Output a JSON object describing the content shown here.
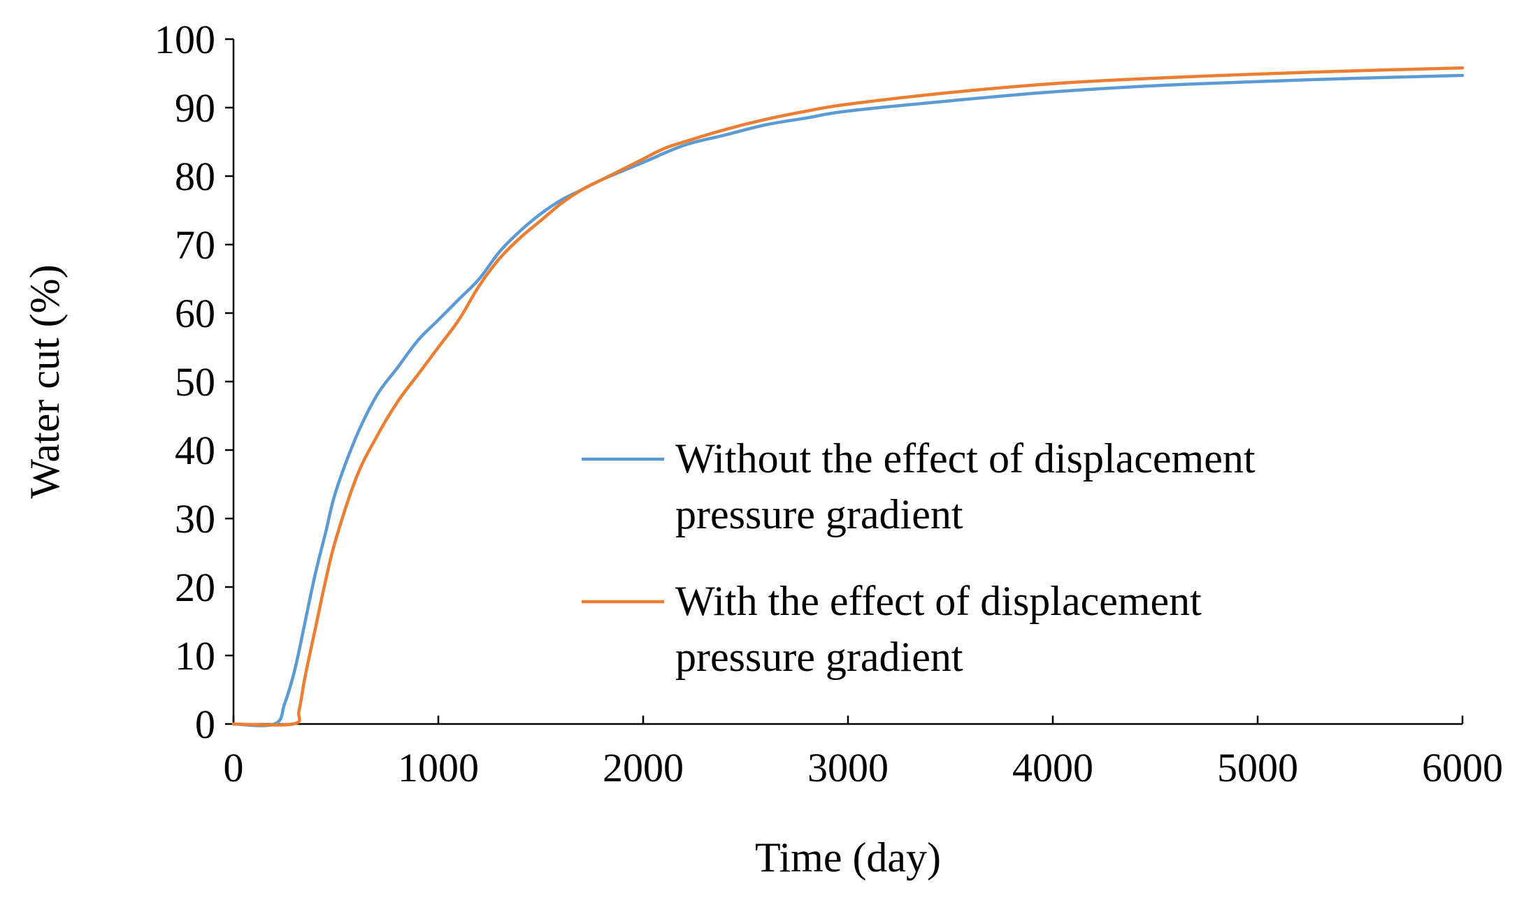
{
  "chart_data": {
    "type": "line",
    "title": "",
    "xlabel": "Time (day)",
    "ylabel": "Water cut (%)",
    "xlim": [
      0,
      6000
    ],
    "ylim": [
      0,
      100
    ],
    "xticks": [
      "0",
      "1000",
      "2000",
      "3000",
      "4000",
      "5000",
      "6000"
    ],
    "yticks": [
      "0",
      "10",
      "20",
      "30",
      "40",
      "50",
      "60",
      "70",
      "80",
      "90",
      "100"
    ],
    "grid": false,
    "legend_position": "center-right",
    "series": [
      {
        "name_lines": [
          "Without the effect of displacement",
          "pressure gradient"
        ],
        "color": "#5b9bd5",
        "x": [
          0,
          200,
          250,
          300,
          350,
          400,
          450,
          500,
          600,
          700,
          800,
          900,
          1000,
          1100,
          1200,
          1300,
          1400,
          1500,
          1600,
          1700,
          1800,
          2000,
          2200,
          2400,
          2600,
          2800,
          3000,
          3500,
          4000,
          4500,
          5000,
          5500,
          6000
        ],
        "y": [
          0,
          0,
          3,
          8,
          15,
          22,
          28,
          34,
          42,
          48,
          52,
          56,
          59,
          62,
          65,
          69,
          72,
          74.5,
          76.5,
          78,
          79.5,
          82,
          84.5,
          86,
          87.5,
          88.5,
          89.5,
          91,
          92.3,
          93.2,
          93.8,
          94.3,
          94.7
        ]
      },
      {
        "name_lines": [
          "With the effect of displacement",
          "pressure gradient"
        ],
        "color": "#ed7d31",
        "x": [
          0,
          290,
          320,
          350,
          400,
          450,
          500,
          600,
          700,
          800,
          900,
          1000,
          1100,
          1200,
          1300,
          1400,
          1500,
          1600,
          1700,
          1800,
          1900,
          2000,
          2100,
          2200,
          2400,
          2600,
          2800,
          3000,
          3500,
          4000,
          4500,
          5000,
          5500,
          6000
        ],
        "y": [
          0,
          0,
          2,
          7,
          14,
          21,
          27,
          36,
          42,
          47,
          51,
          55,
          59,
          64,
          68,
          71,
          73.5,
          76,
          78,
          79.5,
          81,
          82.5,
          84,
          85,
          86.8,
          88.3,
          89.5,
          90.5,
          92.2,
          93.5,
          94.3,
          94.9,
          95.4,
          95.8
        ]
      }
    ]
  }
}
